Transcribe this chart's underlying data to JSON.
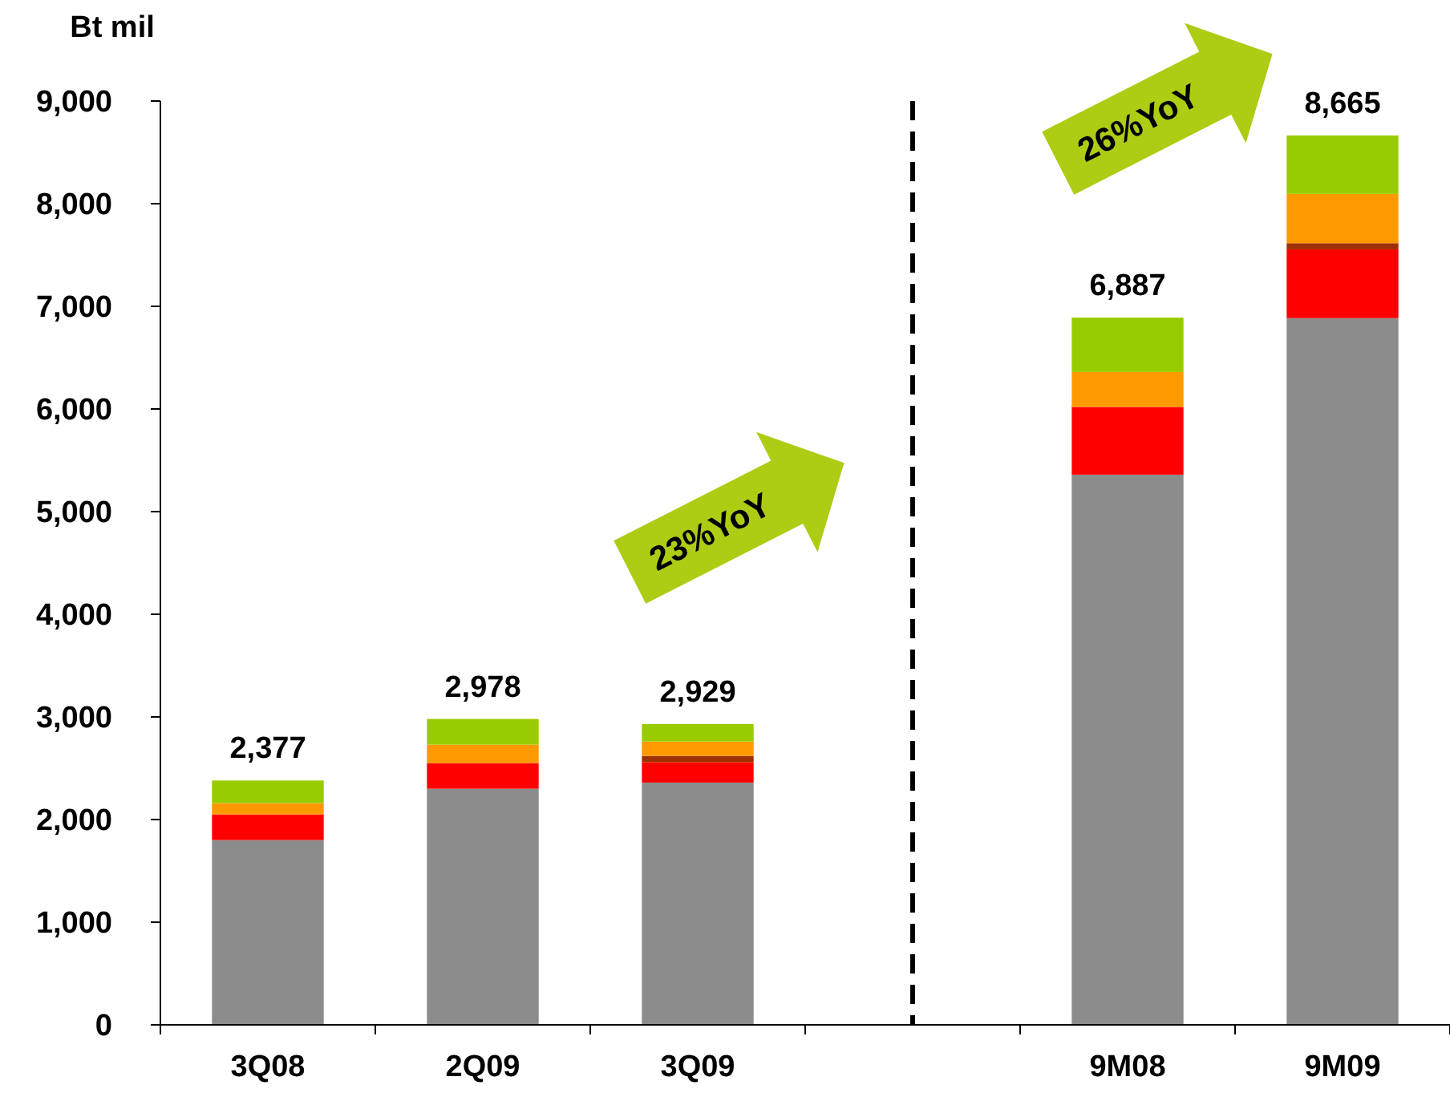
{
  "chart_data": {
    "type": "bar",
    "stacked": true,
    "ylabel": "Bt mil",
    "categories": [
      "3Q08",
      "2Q09",
      "3Q09",
      null,
      "9M08",
      "9M09"
    ],
    "series": [
      {
        "color": "#8c8c8c",
        "values": [
          1800,
          2300,
          2360,
          null,
          5360,
          6885
        ]
      },
      {
        "color": "#ff0000",
        "values": [
          250,
          250,
          200,
          null,
          660,
          670
        ]
      },
      {
        "color": "#a03000",
        "values": [
          0,
          0,
          60,
          null,
          0,
          60
        ]
      },
      {
        "color": "#ff9900",
        "values": [
          110,
          180,
          140,
          null,
          340,
          480
        ]
      },
      {
        "color": "#99cc00",
        "values": [
          220,
          250,
          170,
          null,
          530,
          570
        ]
      }
    ],
    "totals": [
      "2,377",
      "2,978",
      "2,929",
      null,
      "6,887",
      "8,665"
    ],
    "ylim": [
      0,
      9000
    ],
    "yticks": [
      {
        "value": 0,
        "label": "0"
      },
      {
        "value": 1000,
        "label": "1,000"
      },
      {
        "value": 2000,
        "label": "2,000"
      },
      {
        "value": 3000,
        "label": "3,000"
      },
      {
        "value": 4000,
        "label": "4,000"
      },
      {
        "value": 5000,
        "label": "5,000"
      },
      {
        "value": 6000,
        "label": "6,000"
      },
      {
        "value": 7000,
        "label": "7,000"
      },
      {
        "value": 8000,
        "label": "8,000"
      },
      {
        "value": 9000,
        "label": "9,000"
      }
    ],
    "annotations": [
      "23%YoY",
      "26%YoY"
    ]
  }
}
